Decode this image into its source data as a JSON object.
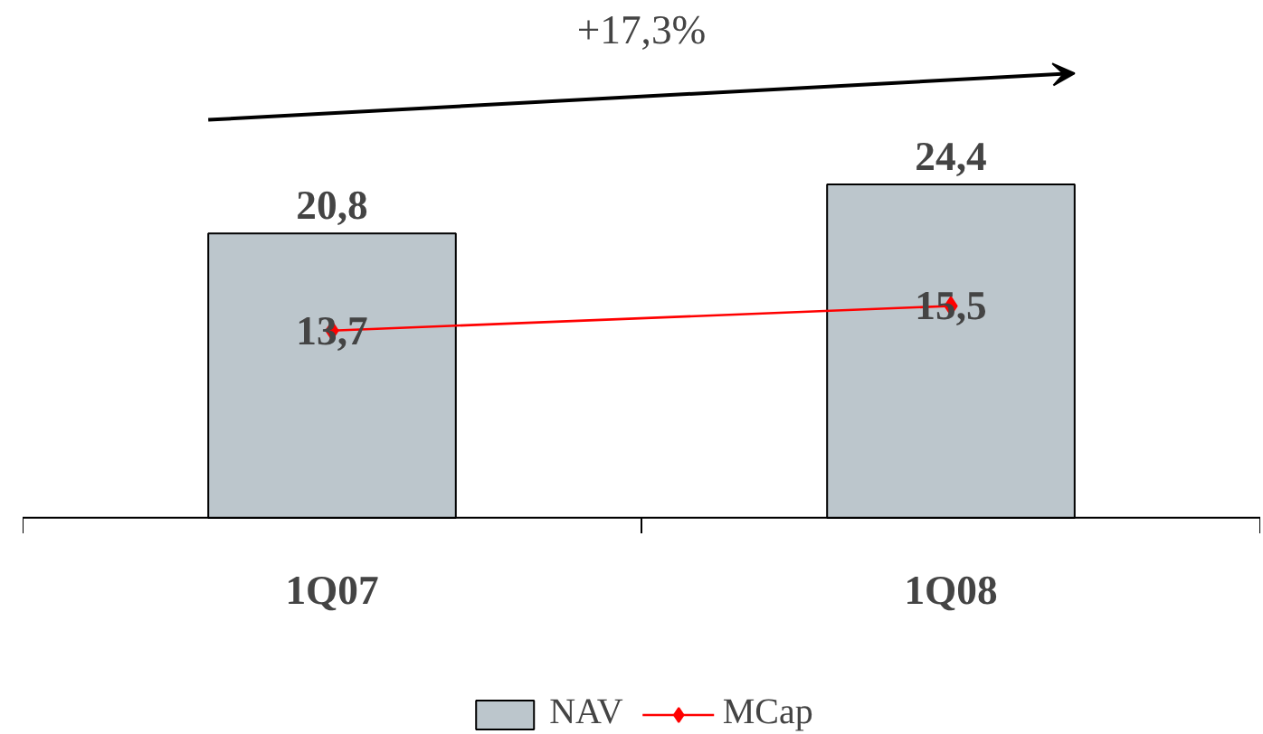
{
  "chart_data": {
    "type": "bar",
    "categories": [
      "1Q07",
      "1Q08"
    ],
    "series": [
      {
        "name": "NAV",
        "color": "#bcc6cc",
        "values": [
          20.8,
          24.4
        ],
        "value_labels": [
          "20,8",
          "24,4"
        ]
      },
      {
        "name": "MCap",
        "type": "line",
        "color": "#ff0000",
        "values": [
          13.7,
          15.5
        ],
        "value_labels": [
          "13,7",
          "15,5"
        ],
        "marker": "diamond"
      }
    ],
    "annotations": [
      "+17,3%"
    ],
    "legend": "bottom"
  }
}
